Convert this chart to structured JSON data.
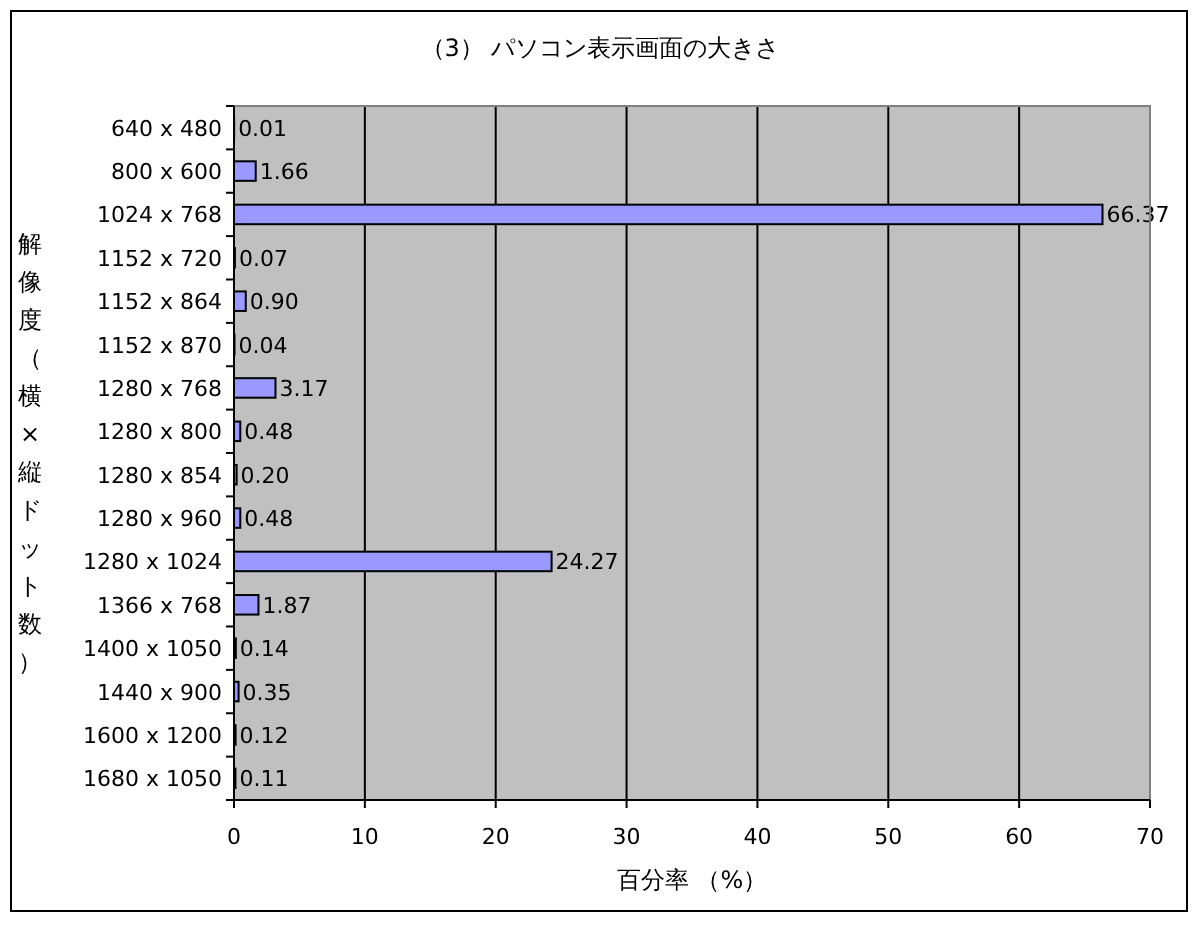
{
  "chart_data": {
    "type": "bar",
    "orientation": "horizontal",
    "title": "（3） パソコン表示画面の大きさ",
    "xlabel": "百分率 （%）",
    "ylabel": "解像度（横×縦ドット数）",
    "categories": [
      "640 x 480",
      "800 x 600",
      "1024 x 768",
      "1152 x 720",
      "1152 x 864",
      "1152 x 870",
      "1280 x 768",
      "1280 x 800",
      "1280 x 854",
      "1280 x 960",
      "1280 x 1024",
      "1366 x 768",
      "1400 x 1050",
      "1440 x 900",
      "1600 x 1200",
      "1680 x 1050"
    ],
    "values": [
      0.01,
      1.66,
      66.37,
      0.07,
      0.9,
      0.04,
      3.17,
      0.48,
      0.2,
      0.48,
      24.27,
      1.87,
      0.14,
      0.35,
      0.12,
      0.11
    ],
    "value_labels": [
      "0.01",
      "1.66",
      "66.37",
      "0.07",
      "0.90",
      "0.04",
      "3.17",
      "0.48",
      "0.20",
      "0.48",
      "24.27",
      "1.87",
      "0.14",
      "0.35",
      "0.12",
      "0.11"
    ],
    "color": "#9999ff",
    "xlim": [
      0,
      70
    ],
    "xticks": [
      0,
      10,
      20,
      30,
      40,
      50,
      60,
      70
    ],
    "grid": "x"
  }
}
